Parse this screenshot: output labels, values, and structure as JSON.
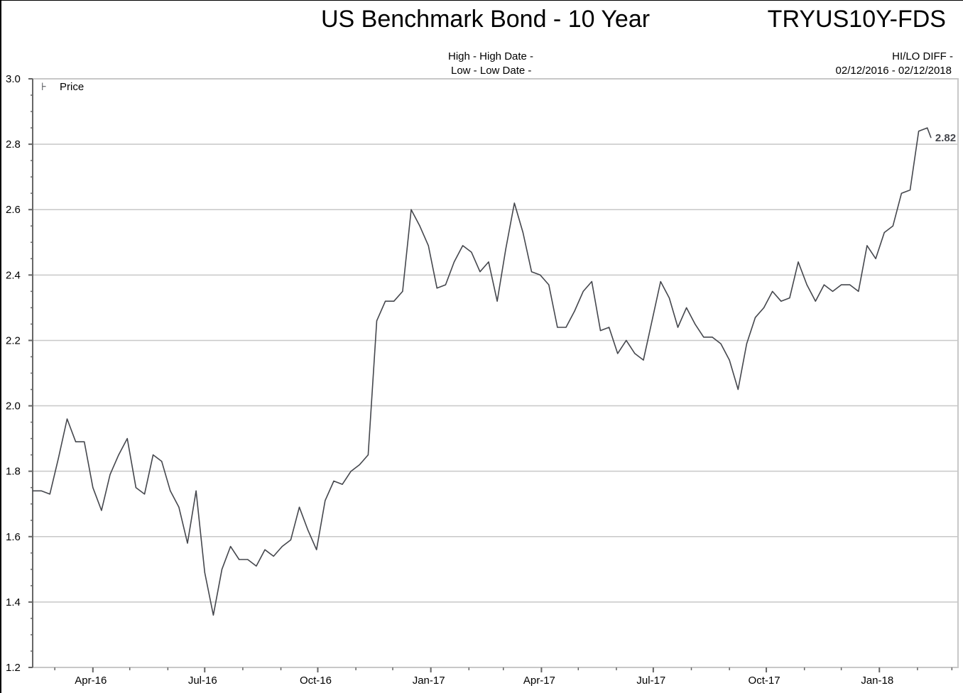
{
  "header": {
    "title": "US Benchmark Bond - 10 Year",
    "ticker": "TRYUS10Y-FDS",
    "high_line": "High - High Date -",
    "low_line": "Low - Low Date -",
    "hilo_label": "HI/LO DIFF -",
    "date_range": "02/12/2016 - 02/12/2018"
  },
  "chart_data": {
    "type": "line",
    "title": "US Benchmark Bond - 10 Year",
    "xlabel": "",
    "ylabel": "",
    "xlim": [
      "2016-02-12",
      "2018-03-06"
    ],
    "ylim": [
      1.2,
      3.0
    ],
    "y_ticks": [
      "1.2",
      "1.4",
      "1.6",
      "1.8",
      "2.0",
      "2.2",
      "2.4",
      "2.6",
      "2.8",
      "3.0"
    ],
    "x_ticks": [
      {
        "label": "Apr-16",
        "date": "2016-04-01"
      },
      {
        "label": "Jul-16",
        "date": "2016-07-01"
      },
      {
        "label": "Oct-16",
        "date": "2016-10-01"
      },
      {
        "label": "Jan-17",
        "date": "2017-01-01"
      },
      {
        "label": "Apr-17",
        "date": "2017-04-01"
      },
      {
        "label": "Jul-17",
        "date": "2017-07-01"
      },
      {
        "label": "Oct-17",
        "date": "2017-10-01"
      },
      {
        "label": "Jan-18",
        "date": "2018-01-01"
      }
    ],
    "grid": true,
    "legend": {
      "position": "top-left",
      "entries": [
        "Price"
      ]
    },
    "last_value_label": "2.82",
    "colors": {
      "line": "#45474d",
      "grid": "#c8c8c8",
      "axis": "#666666"
    },
    "series": [
      {
        "name": "Price",
        "x": [
          "2016-02-12",
          "2016-02-19",
          "2016-02-26",
          "2016-03-04",
          "2016-03-11",
          "2016-03-18",
          "2016-03-25",
          "2016-04-01",
          "2016-04-08",
          "2016-04-15",
          "2016-04-22",
          "2016-04-29",
          "2016-05-06",
          "2016-05-13",
          "2016-05-20",
          "2016-05-27",
          "2016-06-03",
          "2016-06-10",
          "2016-06-17",
          "2016-06-24",
          "2016-07-01",
          "2016-07-08",
          "2016-07-15",
          "2016-07-22",
          "2016-07-29",
          "2016-08-05",
          "2016-08-12",
          "2016-08-19",
          "2016-08-26",
          "2016-09-02",
          "2016-09-09",
          "2016-09-16",
          "2016-09-23",
          "2016-09-30",
          "2016-10-07",
          "2016-10-14",
          "2016-10-21",
          "2016-10-28",
          "2016-11-04",
          "2016-11-11",
          "2016-11-18",
          "2016-11-25",
          "2016-12-02",
          "2016-12-09",
          "2016-12-16",
          "2016-12-23",
          "2016-12-30",
          "2017-01-06",
          "2017-01-13",
          "2017-01-20",
          "2017-01-27",
          "2017-02-03",
          "2017-02-10",
          "2017-02-17",
          "2017-02-24",
          "2017-03-03",
          "2017-03-10",
          "2017-03-17",
          "2017-03-24",
          "2017-03-31",
          "2017-04-07",
          "2017-04-14",
          "2017-04-21",
          "2017-04-28",
          "2017-05-05",
          "2017-05-12",
          "2017-05-19",
          "2017-05-26",
          "2017-06-02",
          "2017-06-09",
          "2017-06-16",
          "2017-06-23",
          "2017-06-30",
          "2017-07-07",
          "2017-07-14",
          "2017-07-21",
          "2017-07-28",
          "2017-08-04",
          "2017-08-11",
          "2017-08-18",
          "2017-08-25",
          "2017-09-01",
          "2017-09-08",
          "2017-09-15",
          "2017-09-22",
          "2017-09-29",
          "2017-10-06",
          "2017-10-13",
          "2017-10-20",
          "2017-10-27",
          "2017-11-03",
          "2017-11-10",
          "2017-11-17",
          "2017-11-24",
          "2017-12-01",
          "2017-12-08",
          "2017-12-15",
          "2017-12-22",
          "2017-12-29",
          "2018-01-05",
          "2018-01-12",
          "2018-01-19",
          "2018-01-26",
          "2018-02-02",
          "2018-02-09",
          "2018-02-12"
        ],
        "values": [
          1.74,
          1.74,
          1.73,
          1.84,
          1.96,
          1.89,
          1.89,
          1.75,
          1.68,
          1.79,
          1.85,
          1.9,
          1.75,
          1.73,
          1.85,
          1.83,
          1.74,
          1.69,
          1.58,
          1.74,
          1.49,
          1.36,
          1.5,
          1.57,
          1.53,
          1.53,
          1.51,
          1.56,
          1.54,
          1.57,
          1.59,
          1.69,
          1.62,
          1.56,
          1.71,
          1.77,
          1.76,
          1.8,
          1.82,
          1.85,
          2.26,
          2.32,
          2.32,
          2.35,
          2.6,
          2.55,
          2.49,
          2.36,
          2.37,
          2.44,
          2.49,
          2.47,
          2.41,
          2.44,
          2.32,
          2.48,
          2.62,
          2.53,
          2.41,
          2.4,
          2.37,
          2.24,
          2.24,
          2.29,
          2.35,
          2.38,
          2.23,
          2.24,
          2.16,
          2.2,
          2.16,
          2.14,
          2.26,
          2.38,
          2.33,
          2.24,
          2.3,
          2.25,
          2.21,
          2.21,
          2.19,
          2.14,
          2.05,
          2.19,
          2.27,
          2.3,
          2.35,
          2.32,
          2.33,
          2.44,
          2.37,
          2.32,
          2.37,
          2.35,
          2.37,
          2.37,
          2.35,
          2.49,
          2.45,
          2.53,
          2.55,
          2.65,
          2.66,
          2.84,
          2.85,
          2.82
        ]
      }
    ]
  }
}
